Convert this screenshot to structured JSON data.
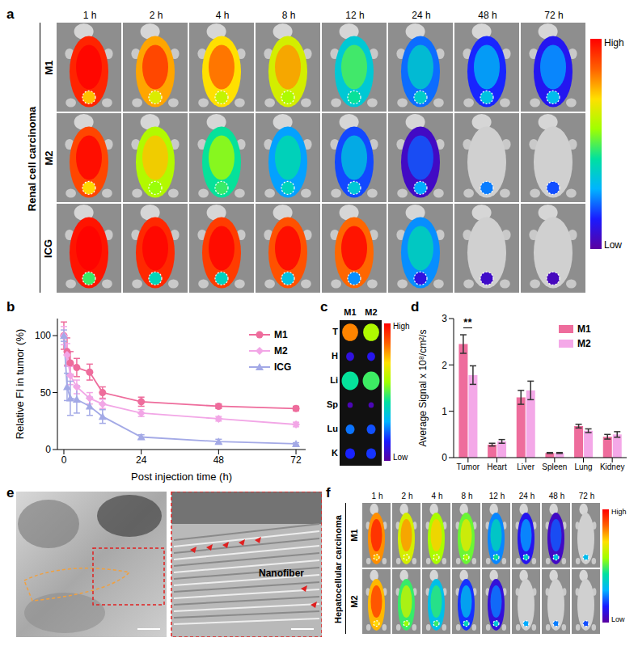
{
  "panels": [
    "a",
    "b",
    "c",
    "d",
    "e",
    "f"
  ],
  "panel_a": {
    "group_label": "Renal cell carcinoma",
    "rows": [
      "M1",
      "M2",
      "ICG"
    ],
    "times": [
      "1 h",
      "2 h",
      "4 h",
      "8 h",
      "12 h",
      "24 h",
      "48 h",
      "72 h"
    ],
    "colorbar": [
      "High",
      "Low"
    ]
  },
  "panel_c": {
    "columns": [
      "M1",
      "M2"
    ],
    "rows": [
      "T",
      "H",
      "Li",
      "Sp",
      "Lu",
      "K"
    ],
    "colorbar": [
      "High",
      "Low"
    ]
  },
  "panel_e": {
    "label": "Nanofiber"
  },
  "panel_f": {
    "group_label": "Hepatocellular carcinoma",
    "rows": [
      "M1",
      "M2"
    ],
    "times": [
      "1 h",
      "2 h",
      "4 h",
      "8 h",
      "12 h",
      "24 h",
      "48 h",
      "72 h"
    ],
    "colorbar": [
      "High",
      "Low"
    ]
  },
  "chart_data": [
    {
      "type": "line",
      "x_label": "Post injection time (h)",
      "y_label": "Relative FI in tumor (%)",
      "x": [
        0,
        1,
        2,
        4,
        8,
        12,
        24,
        48,
        72
      ],
      "series": [
        {
          "name": "M1",
          "color": "#ee6c9c",
          "marker": "circle",
          "values": [
            100,
            86,
            76,
            72,
            68,
            50,
            42,
            38,
            36
          ],
          "errors": [
            12,
            12,
            10,
            8,
            7,
            5,
            4,
            2,
            2
          ]
        },
        {
          "name": "M2",
          "color": "#f2a6e6",
          "marker": "diamond",
          "values": [
            100,
            83,
            65,
            55,
            45,
            40,
            32,
            27,
            22
          ],
          "errors": [
            8,
            10,
            8,
            6,
            5,
            4,
            3,
            2,
            2
          ]
        },
        {
          "name": "ICG",
          "color": "#a3a9e6",
          "marker": "triangle",
          "values": [
            100,
            55,
            45,
            44,
            38,
            29,
            11,
            7,
            5
          ],
          "errors": [
            5,
            12,
            15,
            12,
            8,
            6,
            2,
            2,
            1
          ]
        }
      ],
      "xlim": [
        -2,
        75
      ],
      "xticks": [
        0,
        24,
        48,
        72
      ],
      "ylim": [
        0,
        115
      ],
      "yticks": [
        0,
        50,
        100
      ],
      "legend": "upper right"
    },
    {
      "type": "bar",
      "y_label": "Average Signal x 10⁸/cm²/s",
      "categories": [
        "Tumor",
        "Heart",
        "Liver",
        "Spleen",
        "Lung",
        "Kidney"
      ],
      "series": [
        {
          "name": "M1",
          "color": "#ee6c9c",
          "values": [
            2.45,
            0.28,
            1.3,
            0.1,
            0.68,
            0.45
          ],
          "errors": [
            0.2,
            0.03,
            0.15,
            0.01,
            0.04,
            0.05
          ]
        },
        {
          "name": "M2",
          "color": "#f4a8e8",
          "values": [
            1.78,
            0.35,
            1.45,
            0.1,
            0.58,
            0.5
          ],
          "errors": [
            0.2,
            0.04,
            0.2,
            0.01,
            0.04,
            0.06
          ]
        }
      ],
      "ylim": [
        0,
        3
      ],
      "yticks": [
        0,
        1,
        2,
        3
      ],
      "legend": "upper right",
      "annotations": [
        {
          "text": "**",
          "category": "Tumor"
        }
      ]
    }
  ]
}
